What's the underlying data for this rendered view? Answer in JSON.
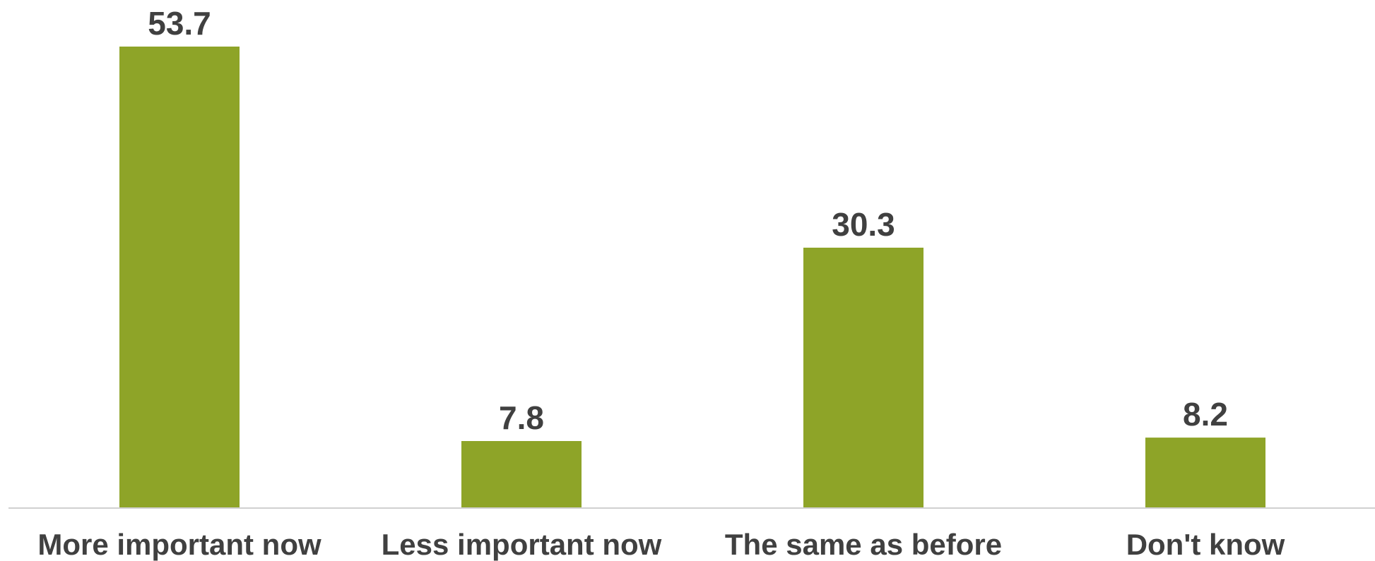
{
  "chart_data": {
    "type": "bar",
    "categories": [
      "More important now",
      "Less important now",
      "The same as before",
      "Don't know"
    ],
    "values": [
      53.7,
      7.8,
      30.3,
      8.2
    ],
    "title": "",
    "xlabel": "",
    "ylabel": "",
    "ylim": [
      0,
      53.7
    ],
    "grid": false,
    "legend": "none",
    "data_labels": [
      "53.7",
      "7.8",
      "30.3",
      "8.2"
    ],
    "colors": {
      "bar": "#8ea428",
      "text": "#404040",
      "axis": "#d0d0d0"
    }
  }
}
